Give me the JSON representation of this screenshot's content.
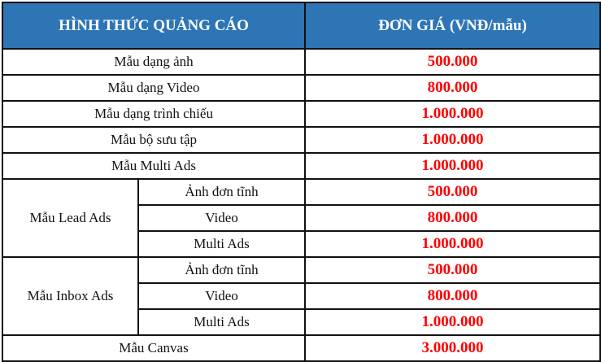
{
  "header": {
    "col1": "HÌNH THỨC QUẢNG CÁO",
    "col2": "ĐƠN GIÁ (VNĐ/mẫu)"
  },
  "colors": {
    "header_bg": "#2E75B6",
    "price": "#FF0000"
  },
  "simple_rows": [
    {
      "label": "Mẫu dạng ảnh",
      "price": "500.000"
    },
    {
      "label": "Mẫu dạng Video",
      "price": "800.000"
    },
    {
      "label": "Mẫu dạng trình chiếu",
      "price": "1.000.000"
    },
    {
      "label": "Mẫu bộ sưu tập",
      "price": "1.000.000"
    },
    {
      "label": "Mẫu Multi Ads",
      "price": "1.000.000"
    }
  ],
  "groups": [
    {
      "label": "Mẫu Lead Ads",
      "items": [
        {
          "label": "Ảnh đơn tĩnh",
          "price": "500.000"
        },
        {
          "label": "Video",
          "price": "800.000"
        },
        {
          "label": "Multi Ads",
          "price": "1.000.000"
        }
      ]
    },
    {
      "label": "Mẫu Inbox Ads",
      "items": [
        {
          "label": "Ảnh đơn tĩnh",
          "price": "500.000"
        },
        {
          "label": "Video",
          "price": "800.000"
        },
        {
          "label": "Multi Ads",
          "price": "1.000.000"
        }
      ]
    }
  ],
  "final_row": {
    "label": "Mẫu Canvas",
    "price": "3.000.000"
  }
}
